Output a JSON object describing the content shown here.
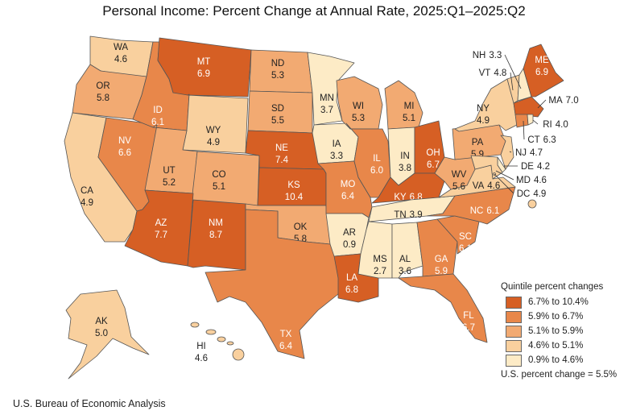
{
  "title": "Personal Income: Percent Change at Annual Rate, 2025:Q1–2025:Q2",
  "footer": "U.S. Bureau of Economic Analysis",
  "legend": {
    "title": "Quintile percent changes",
    "items": [
      {
        "label": "6.7% to 10.4%",
        "color": "#d65f24"
      },
      {
        "label": "5.9% to 6.7%",
        "color": "#e8874a"
      },
      {
        "label": "5.1% to 5.9%",
        "color": "#f2aa72"
      },
      {
        "label": "4.6% to 5.1%",
        "color": "#f9d09e"
      },
      {
        "label": "0.9% to 4.6%",
        "color": "#fdebc6"
      }
    ],
    "us_change": "U.S. percent change = 5.5%"
  },
  "states": [
    {
      "abbr": "WA",
      "value": "4.6",
      "quintile": 4
    },
    {
      "abbr": "OR",
      "value": "5.8",
      "quintile": 3
    },
    {
      "abbr": "CA",
      "value": "4.9",
      "quintile": 4
    },
    {
      "abbr": "NV",
      "value": "6.6",
      "quintile": 2
    },
    {
      "abbr": "ID",
      "value": "6.1",
      "quintile": 2
    },
    {
      "abbr": "MT",
      "value": "6.9",
      "quintile": 1
    },
    {
      "abbr": "WY",
      "value": "4.9",
      "quintile": 4
    },
    {
      "abbr": "UT",
      "value": "5.2",
      "quintile": 3
    },
    {
      "abbr": "CO",
      "value": "5.1",
      "quintile": 3
    },
    {
      "abbr": "AZ",
      "value": "7.7",
      "quintile": 1
    },
    {
      "abbr": "NM",
      "value": "8.7",
      "quintile": 1
    },
    {
      "abbr": "ND",
      "value": "5.3",
      "quintile": 3
    },
    {
      "abbr": "SD",
      "value": "5.5",
      "quintile": 3
    },
    {
      "abbr": "NE",
      "value": "7.4",
      "quintile": 1
    },
    {
      "abbr": "KS",
      "value": "10.4",
      "quintile": 1
    },
    {
      "abbr": "OK",
      "value": "5.8",
      "quintile": 3
    },
    {
      "abbr": "TX",
      "value": "6.4",
      "quintile": 2
    },
    {
      "abbr": "MN",
      "value": "3.7",
      "quintile": 5
    },
    {
      "abbr": "IA",
      "value": "3.3",
      "quintile": 5
    },
    {
      "abbr": "MO",
      "value": "6.4",
      "quintile": 2
    },
    {
      "abbr": "AR",
      "value": "0.9",
      "quintile": 5
    },
    {
      "abbr": "LA",
      "value": "6.8",
      "quintile": 1
    },
    {
      "abbr": "WI",
      "value": "5.3",
      "quintile": 3
    },
    {
      "abbr": "IL",
      "value": "6.0",
      "quintile": 2
    },
    {
      "abbr": "MI",
      "value": "5.1",
      "quintile": 3
    },
    {
      "abbr": "IN",
      "value": "3.8",
      "quintile": 5
    },
    {
      "abbr": "OH",
      "value": "6.7",
      "quintile": 1
    },
    {
      "abbr": "KY",
      "value": "6.8",
      "quintile": 1
    },
    {
      "abbr": "TN",
      "value": "3.9",
      "quintile": 5
    },
    {
      "abbr": "MS",
      "value": "2.7",
      "quintile": 5
    },
    {
      "abbr": "AL",
      "value": "3.6",
      "quintile": 5
    },
    {
      "abbr": "GA",
      "value": "5.9",
      "quintile": 2
    },
    {
      "abbr": "FL",
      "value": "6.7",
      "quintile": 2
    },
    {
      "abbr": "SC",
      "value": "6.1",
      "quintile": 2
    },
    {
      "abbr": "NC",
      "value": "6.1",
      "quintile": 2
    },
    {
      "abbr": "VA",
      "value": "4.6",
      "quintile": 4
    },
    {
      "abbr": "WV",
      "value": "5.6",
      "quintile": 3
    },
    {
      "abbr": "PA",
      "value": "5.9",
      "quintile": 3
    },
    {
      "abbr": "NY",
      "value": "4.9",
      "quintile": 4
    },
    {
      "abbr": "NJ",
      "value": "4.7",
      "quintile": 4
    },
    {
      "abbr": "DE",
      "value": "4.2",
      "quintile": 5
    },
    {
      "abbr": "MD",
      "value": "4.6",
      "quintile": 4
    },
    {
      "abbr": "DC",
      "value": "4.9",
      "quintile": 4
    },
    {
      "abbr": "VT",
      "value": "4.8",
      "quintile": 4
    },
    {
      "abbr": "NH",
      "value": "3.3",
      "quintile": 5
    },
    {
      "abbr": "ME",
      "value": "6.9",
      "quintile": 1
    },
    {
      "abbr": "MA",
      "value": "7.0",
      "quintile": 1
    },
    {
      "abbr": "CT",
      "value": "6.3",
      "quintile": 2
    },
    {
      "abbr": "RI",
      "value": "4.0",
      "quintile": 5
    },
    {
      "abbr": "AK",
      "value": "5.0",
      "quintile": 4
    },
    {
      "abbr": "HI",
      "value": "4.6",
      "quintile": 4
    }
  ]
}
